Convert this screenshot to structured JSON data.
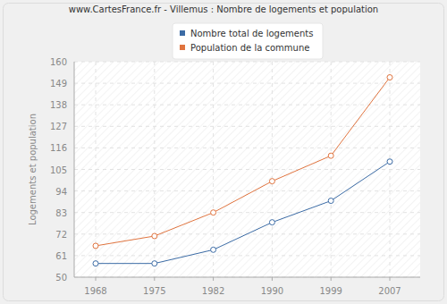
{
  "chart_data": {
    "type": "line",
    "title": "www.CartesFrance.fr - Villemus : Nombre de logements et population",
    "y_label": "Logements et population",
    "categories": [
      "1968",
      "1975",
      "1982",
      "1990",
      "1999",
      "2007"
    ],
    "series": [
      {
        "name": "Nombre total de logements",
        "color": "#3b6ba5",
        "marker": "circle",
        "values": [
          57,
          57,
          64,
          78,
          89,
          109
        ]
      },
      {
        "name": "Population de la commune",
        "color": "#e0743f",
        "marker": "circle",
        "values": [
          66,
          71,
          83,
          99,
          112,
          152
        ]
      }
    ],
    "ylim": [
      50,
      160
    ],
    "yticks": [
      50,
      61,
      72,
      83,
      94,
      105,
      116,
      127,
      138,
      149,
      160
    ],
    "grid": true,
    "legend": "top"
  }
}
